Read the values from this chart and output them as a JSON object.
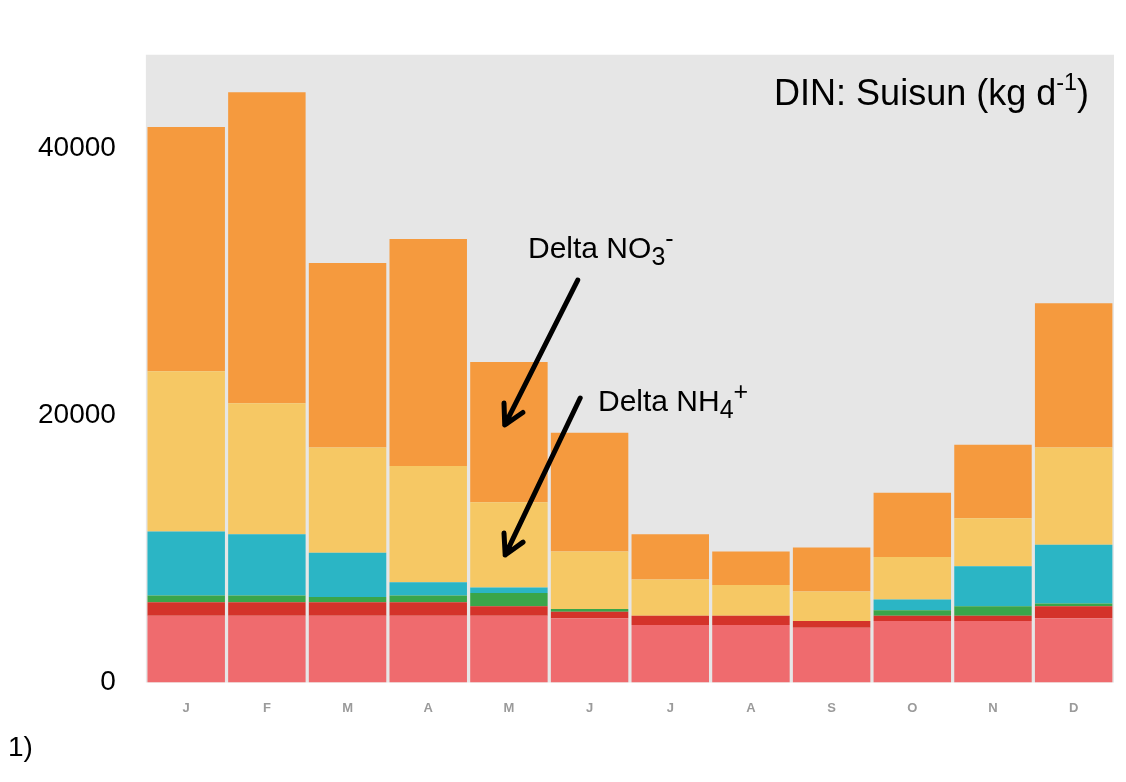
{
  "chart_data": {
    "type": "bar",
    "title": "DIN: Suisun (kg d$^{-1}$)",
    "stacked": true,
    "legend": false,
    "grid": false,
    "categories": [
      "J",
      "F",
      "M",
      "A",
      "M",
      "J",
      "J",
      "A",
      "S",
      "O",
      "N",
      "D"
    ],
    "ylim": [
      0,
      47000
    ],
    "yticks": [
      0,
      20000,
      40000
    ],
    "series": [
      {
        "color": "#ef6b6e",
        "values": [
          5000,
          5000,
          5000,
          5000,
          5000,
          4800,
          4300,
          4300,
          4100,
          4600,
          4600,
          4800
        ]
      },
      {
        "color": "#d4332a",
        "values": [
          1000,
          1000,
          1000,
          1000,
          700,
          500,
          700,
          700,
          500,
          400,
          400,
          900
        ]
      },
      {
        "color": "#3aa54a",
        "values": [
          500,
          500,
          400,
          500,
          1000,
          200,
          null,
          null,
          null,
          400,
          700,
          200
        ]
      },
      {
        "color": "#2bb5c5",
        "values": [
          4800,
          4600,
          3300,
          1000,
          400,
          null,
          null,
          null,
          null,
          800,
          3000,
          4400
        ]
      },
      {
        "color": "#f6c864",
        "values": [
          12000,
          9800,
          7900,
          8700,
          6400,
          4300,
          2700,
          2300,
          2200,
          3200,
          3600,
          7300
        ]
      },
      {
        "color": "#f59a3e",
        "values": [
          18300,
          23300,
          13800,
          17000,
          10500,
          8900,
          3400,
          2500,
          3300,
          4800,
          5500,
          10800
        ]
      }
    ],
    "annotations": [
      "Delta NO$_{3}$$^{-}$",
      "Delta NH$_{4}$$^{+}$",
      "1)"
    ]
  }
}
